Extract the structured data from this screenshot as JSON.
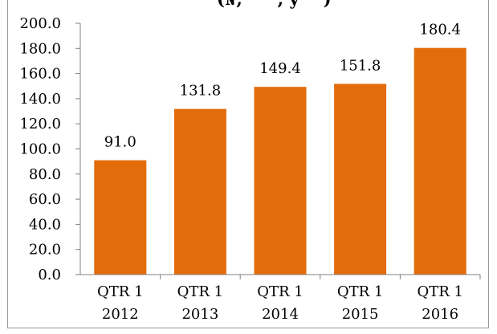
{
  "chart_data": {
    "type": "bar",
    "title": "(₦, ’’’’’, y’’’’)",
    "categories": [
      [
        "QTR 1",
        "2012"
      ],
      [
        "QTR 1",
        "2013"
      ],
      [
        "QTR 1",
        "2014"
      ],
      [
        "QTR 1",
        "2015"
      ],
      [
        "QTR 1",
        "2016"
      ]
    ],
    "values": [
      91.0,
      131.8,
      149.4,
      151.8,
      180.4
    ],
    "data_labels": [
      "91.0",
      "131.8",
      "149.4",
      "151.8",
      "180.4"
    ],
    "ylim": [
      0,
      200
    ],
    "yticks": [
      0,
      20,
      40,
      60,
      80,
      100,
      120,
      140,
      160,
      180,
      200
    ],
    "ytick_labels": [
      "0.0",
      "20.0",
      "40.0",
      "60.0",
      "80.0",
      "100.0",
      "120.0",
      "140.0",
      "160.0",
      "180.0",
      "200.0"
    ],
    "bar_color": "#E36C0A",
    "grid": false,
    "legend": "none",
    "xlabel": "",
    "ylabel": ""
  }
}
